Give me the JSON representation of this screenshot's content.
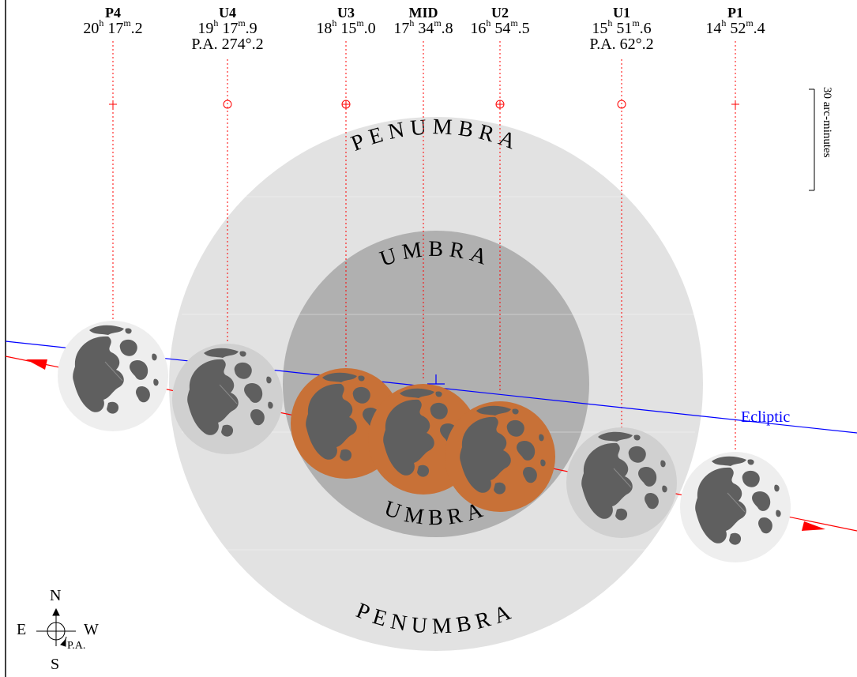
{
  "phases": [
    {
      "id": "p4",
      "label": "P4",
      "hours": "20",
      "rest": "17",
      "minutes_mark": "m",
      "decimal": ".2",
      "pa": ""
    },
    {
      "id": "u4",
      "label": "U4",
      "hours": "19",
      "rest": "17",
      "minutes_mark": "m",
      "decimal": ".9",
      "pa": "P.A. 274°.2"
    },
    {
      "id": "u3",
      "label": "U3",
      "hours": "18",
      "rest": "15",
      "minutes_mark": "m",
      "decimal": ".0",
      "pa": ""
    },
    {
      "id": "mid",
      "label": "MID",
      "hours": "17",
      "rest": "34",
      "minutes_mark": "m",
      "decimal": ".8",
      "pa": ""
    },
    {
      "id": "u2",
      "label": "U2",
      "hours": "16",
      "rest": "54",
      "minutes_mark": "m",
      "decimal": ".5",
      "pa": ""
    },
    {
      "id": "u1",
      "label": "U1",
      "hours": "15",
      "rest": "51",
      "minutes_mark": "m",
      "decimal": ".6",
      "pa": "P.A. 62°.2"
    },
    {
      "id": "p1",
      "label": "P1",
      "hours": "14",
      "rest": "52",
      "minutes_mark": "m",
      "decimal": ".4",
      "pa": ""
    }
  ],
  "shadow_labels": {
    "penumbra_top": "PENUMBRA",
    "penumbra_bottom": "PENUMBRA",
    "umbra_top": "UMBRA",
    "umbra_bottom": "UMBRA"
  },
  "ecliptic_label": "Ecliptic",
  "scale_label": "30 arc-minutes",
  "compass": {
    "north": "N",
    "south": "S",
    "east": "E",
    "west": "W",
    "pa": "P.A."
  },
  "colors": {
    "penumbra": "#e2e2e2",
    "umbra": "#b0b0b0",
    "moon_penumbral": "#eeeeee",
    "moon_partial": "#d0d0d0",
    "moon_total": "#c87137",
    "maria": "#5f5f5f",
    "ecliptic": "#0000ff",
    "moon_path": "#ff0000"
  }
}
